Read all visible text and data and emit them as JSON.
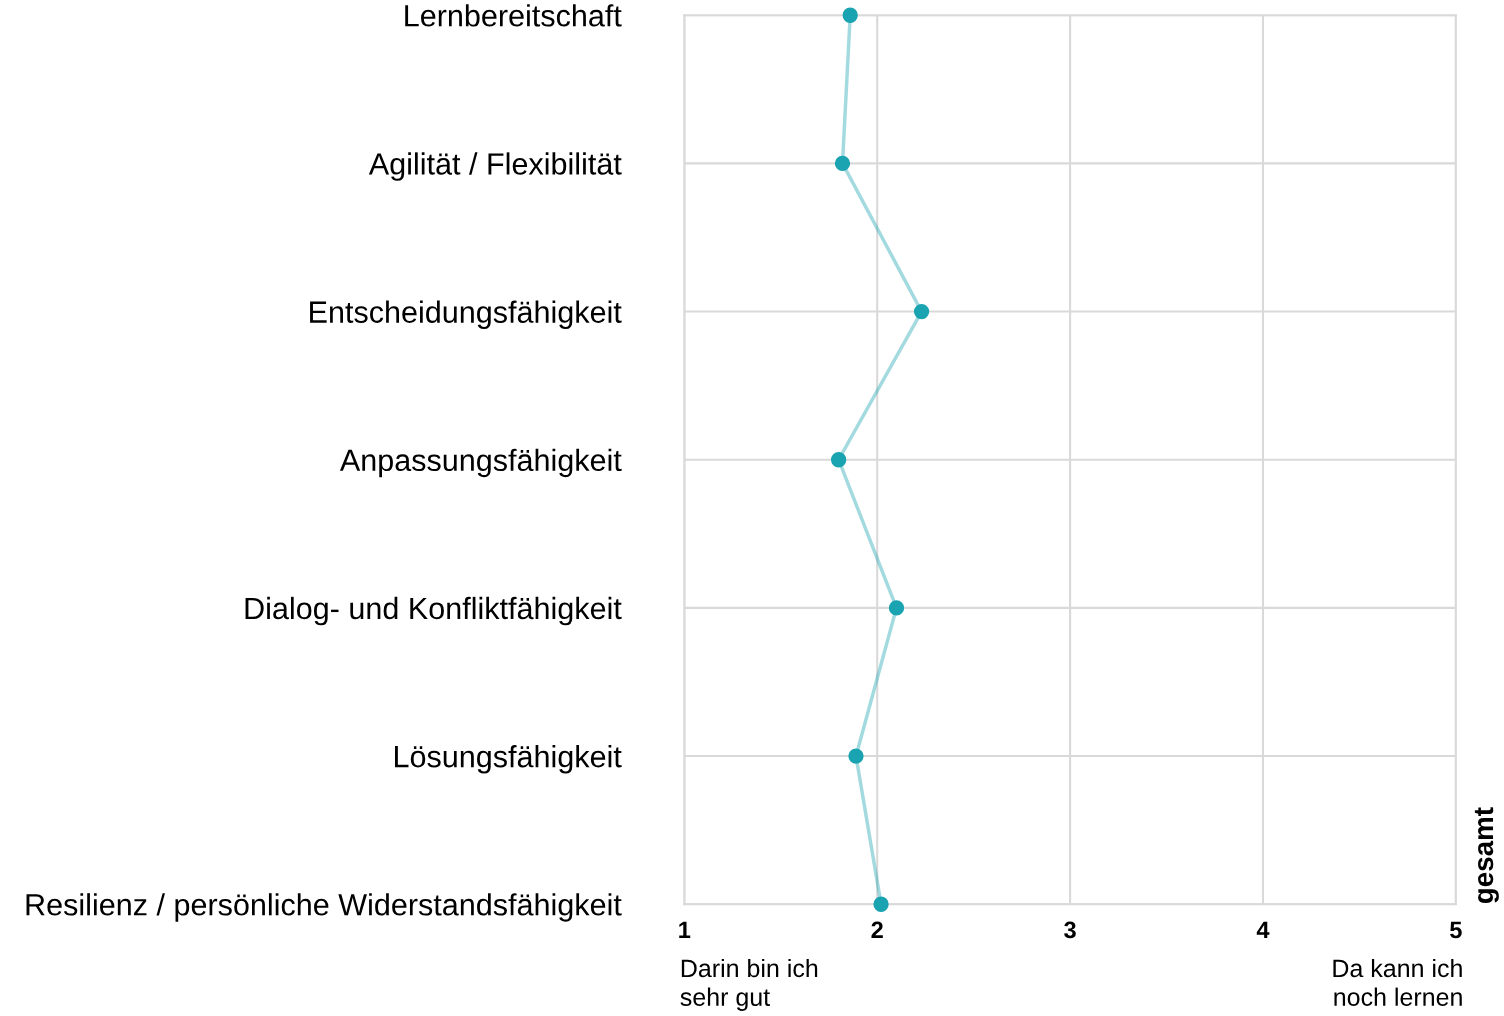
{
  "chart_data": {
    "type": "line",
    "orientation": "horizontal",
    "categories": [
      "Lernbereitschaft",
      "Agilität / Flexibilität",
      "Entscheidungsfähigkeit",
      "Anpassungsfähigkeit",
      "Dialog- und Konfliktfähigkeit",
      "Lösungsfähigkeit",
      "Resilienz / persönliche Widerstandsfähigkeit"
    ],
    "series": [
      {
        "color": "#1aa3b0",
        "values": [
          1.86,
          1.82,
          2.23,
          1.8,
          2.1,
          1.89,
          2.02
        ]
      }
    ],
    "marker": "circle",
    "xlim": [
      1,
      5
    ],
    "xticks": [
      1,
      2,
      3,
      4,
      5
    ],
    "grid": true,
    "annotations": [
      "gesamt",
      "Darin bin ich\nsehr gut",
      "Da kann ich\nnoch lernen"
    ]
  }
}
